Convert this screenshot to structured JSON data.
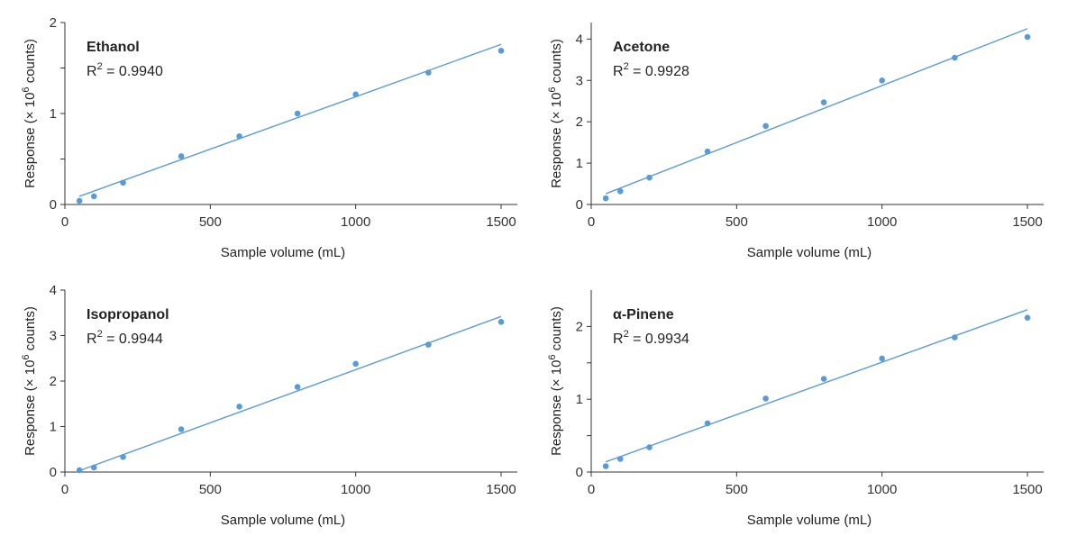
{
  "colors": {
    "series": "#5b9bd5",
    "axis": "#333333",
    "text": "#222222"
  },
  "chart_data": [
    {
      "type": "scatter",
      "title": "Ethanol",
      "annotation": {
        "prefix": "R",
        "sup": "2",
        "value": " = 0.9940"
      },
      "xlabel": "Sample volume (mL)",
      "ylabel": {
        "main": "Response (× 10",
        "sup": "6",
        "tail": " counts)"
      },
      "xlim": [
        0,
        1500
      ],
      "ylim": [
        0,
        2
      ],
      "xticks": [
        0,
        500,
        1000,
        1500
      ],
      "yticks": [
        0,
        0.5,
        1,
        1.5,
        2
      ],
      "yticklabels": [
        "0",
        "",
        "1",
        "",
        "2"
      ],
      "x": [
        50,
        100,
        200,
        400,
        600,
        800,
        1000,
        1250,
        1500
      ],
      "y": [
        0.04,
        0.09,
        0.24,
        0.53,
        0.75,
        1.0,
        1.21,
        1.45,
        1.69
      ],
      "fit": {
        "x0": 50,
        "y0": 0.09,
        "x1": 1500,
        "y1": 1.76
      }
    },
    {
      "type": "scatter",
      "title": "Acetone",
      "annotation": {
        "prefix": "R",
        "sup": "2",
        "value": " = 0.9928"
      },
      "xlabel": "Sample volume (mL)",
      "ylabel": {
        "main": "Response (× 10",
        "sup": "6",
        "tail": " counts)"
      },
      "xlim": [
        0,
        1500
      ],
      "ylim": [
        0,
        4.4
      ],
      "xticks": [
        0,
        500,
        1000,
        1500
      ],
      "yticks": [
        0,
        1,
        2,
        3,
        4
      ],
      "yticklabels": [
        "0",
        "1",
        "2",
        "3",
        "4"
      ],
      "x": [
        50,
        100,
        200,
        400,
        600,
        800,
        1000,
        1250,
        1500
      ],
      "y": [
        0.15,
        0.32,
        0.65,
        1.28,
        1.9,
        2.47,
        3.0,
        3.55,
        4.05
      ],
      "fit": {
        "x0": 50,
        "y0": 0.26,
        "x1": 1500,
        "y1": 4.25
      }
    },
    {
      "type": "scatter",
      "title": "Isopropanol",
      "annotation": {
        "prefix": "R",
        "sup": "2",
        "value": " = 0.9944"
      },
      "xlabel": "Sample volume (mL)",
      "ylabel": {
        "main": "Response (× 10",
        "sup": "6",
        "tail": " counts)"
      },
      "xlim": [
        0,
        1500
      ],
      "ylim": [
        0,
        4
      ],
      "xticks": [
        0,
        500,
        1000,
        1500
      ],
      "yticks": [
        0,
        1,
        2,
        3,
        4
      ],
      "yticklabels": [
        "0",
        "1",
        "2",
        "3",
        "4"
      ],
      "x": [
        50,
        100,
        200,
        400,
        600,
        800,
        1000,
        1250,
        1500
      ],
      "y": [
        0.04,
        0.1,
        0.33,
        0.94,
        1.44,
        1.87,
        2.38,
        2.8,
        3.3
      ],
      "fit": {
        "x0": 50,
        "y0": 0.03,
        "x1": 1500,
        "y1": 3.42
      }
    },
    {
      "type": "scatter",
      "title": "α-Pinene",
      "annotation": {
        "prefix": "R",
        "sup": "2",
        "value": " = 0.9934"
      },
      "xlabel": "Sample volume (mL)",
      "ylabel": {
        "main": "Response (× 10",
        "sup": "6",
        "tail": " counts)"
      },
      "xlim": [
        0,
        1500
      ],
      "ylim": [
        0,
        2.5
      ],
      "xticks": [
        0,
        500,
        1000,
        1500
      ],
      "yticks": [
        0,
        0.5,
        1,
        1.5,
        2
      ],
      "yticklabels": [
        "0",
        "",
        "1",
        "",
        "2"
      ],
      "x": [
        50,
        100,
        200,
        400,
        600,
        800,
        1000,
        1250,
        1500
      ],
      "y": [
        0.08,
        0.18,
        0.34,
        0.67,
        1.01,
        1.28,
        1.56,
        1.85,
        2.12
      ],
      "fit": {
        "x0": 50,
        "y0": 0.14,
        "x1": 1500,
        "y1": 2.23
      }
    }
  ]
}
